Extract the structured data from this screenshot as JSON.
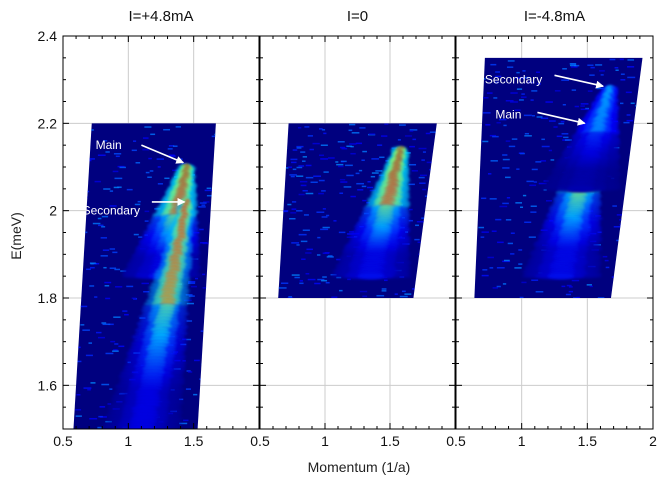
{
  "chart_data": {
    "type": "heatmap",
    "xlabel": "Momentum (1/a)",
    "ylabel": "E(meV)",
    "xlim": [
      0.5,
      2.0
    ],
    "ylim": [
      1.5,
      2.4
    ],
    "x_ticks": [
      "0.5",
      "1",
      "1.5"
    ],
    "x_ticks_last_panel": [
      "0.5",
      "1",
      "1.5",
      "2"
    ],
    "y_ticks": [
      {
        "value": 1.6,
        "label": "1.6"
      },
      {
        "value": 1.8,
        "label": "1.8"
      },
      {
        "value": 2.0,
        "label": "2"
      },
      {
        "value": 2.2,
        "label": "2.2"
      },
      {
        "value": 2.4,
        "label": "2.4"
      }
    ],
    "grid": true,
    "colormap": "jet",
    "panels": [
      {
        "title": "I=+4.8mA",
        "region": {
          "k_left_bottom": 0.58,
          "k_right_bottom": 1.53,
          "k_left_top": 0.72,
          "k_right_top": 1.67,
          "e_bottom": 1.5,
          "e_top": 2.2
        },
        "branches": [
          {
            "name": "Main",
            "k_top": 1.45,
            "e_top": 2.1,
            "k_bottom": 1.25,
            "e_bottom": 1.85,
            "intensity": 1.0
          },
          {
            "name": "Secondary",
            "k_top": 1.45,
            "e_top": 2.02,
            "k_bottom": 1.1,
            "e_bottom": 1.5,
            "intensity": 0.9
          }
        ],
        "annotations": [
          {
            "text": "Main",
            "text_k": 0.75,
            "text_e": 2.15,
            "arrow_from_k": 1.1,
            "arrow_from_e": 2.15,
            "arrow_to_k": 1.42,
            "arrow_to_e": 2.11
          },
          {
            "text": "Secondary",
            "text_k": 0.65,
            "text_e": 2.0,
            "arrow_from_k": 1.18,
            "arrow_from_e": 2.02,
            "arrow_to_k": 1.43,
            "arrow_to_e": 2.02
          }
        ]
      },
      {
        "title": "I=0",
        "region": {
          "k_left_bottom": 0.64,
          "k_right_bottom": 1.68,
          "k_left_top": 0.72,
          "k_right_top": 1.86,
          "e_bottom": 1.8,
          "e_top": 2.2
        },
        "branches": [
          {
            "name": "Main",
            "k_top": 1.58,
            "e_top": 2.14,
            "k_bottom": 1.35,
            "e_bottom": 1.85,
            "intensity": 1.0
          }
        ],
        "annotations": []
      },
      {
        "title": "I=-4.8mA",
        "region": {
          "k_left_bottom": 0.64,
          "k_right_bottom": 1.68,
          "k_left_top": 0.72,
          "k_right_top": 1.92,
          "e_bottom": 1.8,
          "e_top": 2.35
        },
        "branches": [
          {
            "name": "Main",
            "k_top": 1.55,
            "e_top": 2.2,
            "k_bottom": 1.3,
            "e_bottom": 1.85,
            "intensity": 1.0
          },
          {
            "name": "Secondary",
            "k_top": 1.67,
            "e_top": 2.28,
            "k_bottom": 1.45,
            "e_bottom": 2.05,
            "intensity": 0.4
          }
        ],
        "annotations": [
          {
            "text": "Secondary",
            "text_k": 0.72,
            "text_e": 2.3,
            "arrow_from_k": 1.25,
            "arrow_from_e": 2.31,
            "arrow_to_k": 1.62,
            "arrow_to_e": 2.285
          },
          {
            "text": "Main",
            "text_k": 0.8,
            "text_e": 2.22,
            "arrow_from_k": 1.12,
            "arrow_from_e": 2.225,
            "arrow_to_k": 1.48,
            "arrow_to_e": 2.2
          }
        ]
      }
    ]
  },
  "colors": {
    "background": "#00007f",
    "frame": "#000000",
    "grid": "#cccccc",
    "annotation": "#ffffff"
  }
}
